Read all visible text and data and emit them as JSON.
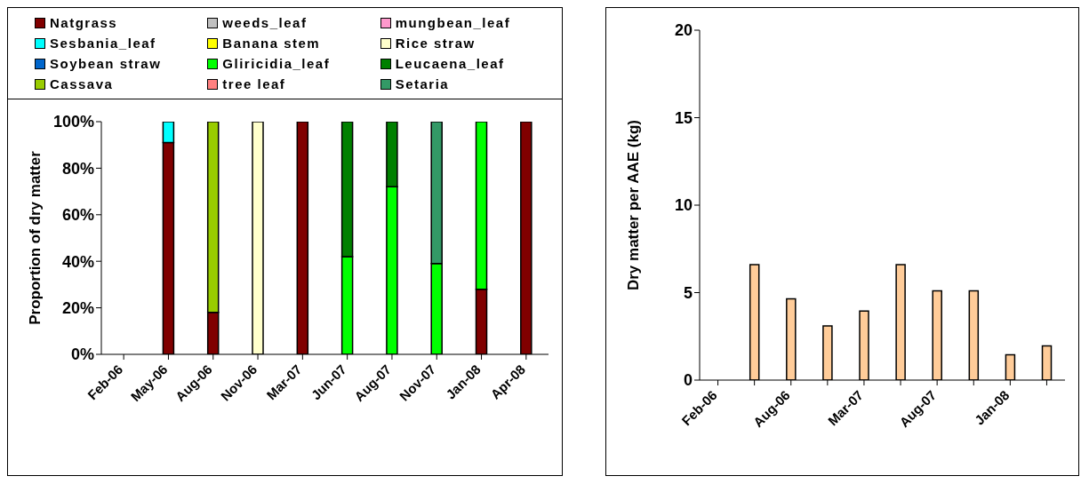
{
  "chart_data": [
    {
      "type": "bar",
      "stacked": true,
      "ylabel": "Proportion of dry matter",
      "legend": "top",
      "categories": [
        "Feb-06",
        "May-06",
        "Aug-06",
        "Nov-06",
        "Mar-07",
        "Jun-07",
        "Aug-07",
        "Nov-07",
        "Jan-08",
        "Apr-08"
      ],
      "ylim": [
        0,
        100
      ],
      "yticks": [
        {
          "value": 0,
          "label": "0%"
        },
        {
          "value": 20,
          "label": "20%"
        },
        {
          "value": 40,
          "label": "40%"
        },
        {
          "value": 60,
          "label": "60%"
        },
        {
          "value": 80,
          "label": "80%"
        },
        {
          "value": 100,
          "label": "100%"
        }
      ],
      "series": [
        {
          "name": "Natgrass",
          "color": "#800000",
          "values": [
            null,
            91,
            18,
            null,
            100,
            null,
            null,
            null,
            28,
            100
          ]
        },
        {
          "name": "weeds_leaf",
          "color": "#c0c0c0",
          "values": [
            null,
            null,
            null,
            null,
            null,
            null,
            null,
            null,
            null,
            null
          ]
        },
        {
          "name": "mungbean_leaf",
          "color": "#ff99cc",
          "values": [
            null,
            null,
            null,
            null,
            null,
            null,
            null,
            null,
            null,
            null
          ]
        },
        {
          "name": "Sesbania_leaf",
          "color": "#00ffff",
          "values": [
            null,
            9,
            null,
            null,
            null,
            null,
            null,
            null,
            null,
            null
          ]
        },
        {
          "name": "Banana stem",
          "color": "#ffff00",
          "values": [
            null,
            null,
            null,
            null,
            null,
            null,
            null,
            null,
            null,
            null
          ]
        },
        {
          "name": "Rice straw",
          "color": "#ffffcc",
          "values": [
            null,
            null,
            null,
            100,
            null,
            null,
            null,
            null,
            null,
            null
          ]
        },
        {
          "name": "Soybean straw",
          "color": "#0066cc",
          "values": [
            null,
            null,
            null,
            null,
            null,
            null,
            null,
            null,
            null,
            null
          ]
        },
        {
          "name": "Gliricidia_leaf",
          "color": "#00ff00",
          "values": [
            null,
            null,
            null,
            null,
            null,
            42,
            72,
            39,
            72,
            null
          ]
        },
        {
          "name": "Leucaena_leaf",
          "color": "#008000",
          "values": [
            null,
            null,
            null,
            null,
            null,
            58,
            28,
            null,
            null,
            null
          ]
        },
        {
          "name": "Cassava",
          "color": "#99cc00",
          "values": [
            null,
            null,
            82,
            null,
            null,
            null,
            null,
            null,
            null,
            null
          ]
        },
        {
          "name": "tree leaf",
          "color": "#ff8080",
          "values": [
            null,
            null,
            null,
            null,
            null,
            null,
            null,
            null,
            null,
            null
          ]
        },
        {
          "name": "Setaria",
          "color": "#339966",
          "values": [
            null,
            null,
            null,
            null,
            null,
            null,
            null,
            61,
            null,
            null
          ]
        }
      ]
    },
    {
      "type": "bar",
      "ylabel": "Dry matter per AAE (kg)",
      "categories": [
        "Feb-06",
        null,
        "Aug-06",
        null,
        "Mar-07",
        null,
        "Aug-07",
        null,
        "Jan-08",
        null
      ],
      "ylim": [
        0,
        20
      ],
      "yticks": [
        0,
        5,
        10,
        15,
        20
      ],
      "color": "#ffcc99",
      "values": [
        null,
        6.6,
        4.65,
        3.1,
        3.95,
        6.6,
        5.1,
        5.1,
        1.45,
        1.95
      ]
    }
  ]
}
